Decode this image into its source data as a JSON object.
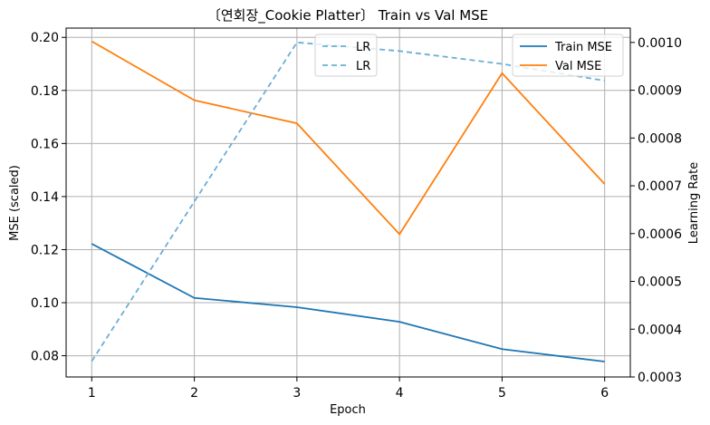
{
  "chart_data": {
    "type": "line",
    "title": "〔연회장_Cookie Platter〕 Train vs Val MSE",
    "xlabel": "Epoch",
    "ylabel": "MSE (scaled)",
    "y2label": "Learning Rate",
    "x": [
      1,
      2,
      3,
      4,
      5,
      6
    ],
    "xlim": [
      0.75,
      6.25
    ],
    "ylim": [
      0.072,
      0.2035
    ],
    "y2lim": [
      0.0003,
      0.00103
    ],
    "xticks": [
      "1",
      "2",
      "3",
      "4",
      "5",
      "6"
    ],
    "yticks": [
      "0.08",
      "0.10",
      "0.12",
      "0.14",
      "0.16",
      "0.18",
      "0.20"
    ],
    "y2ticks": [
      "0.0003",
      "0.0004",
      "0.0005",
      "0.0006",
      "0.0007",
      "0.0008",
      "0.0009",
      "0.0010"
    ],
    "grid": true,
    "series": [
      {
        "name": "Train MSE",
        "axis": "left",
        "color": "#1f77b4",
        "style": "solid",
        "values": [
          0.1222,
          0.1018,
          0.0983,
          0.0928,
          0.0825,
          0.0778
        ]
      },
      {
        "name": "Val MSE",
        "axis": "left",
        "color": "#ff7f0e",
        "style": "solid",
        "values": [
          0.1985,
          0.1763,
          0.1676,
          0.1258,
          0.1865,
          0.1447
        ]
      },
      {
        "name": "LR",
        "axis": "right",
        "color": "#6baed6",
        "style": "dashed",
        "values": [
          0.000333,
          0.000667,
          0.001,
          0.000982,
          0.000955,
          0.00092
        ]
      }
    ],
    "legends": [
      {
        "placement": "top-center",
        "entries": [
          "LR",
          "LR"
        ],
        "color": "#6baed6"
      },
      {
        "placement": "top-right",
        "entries": [
          "Train MSE",
          "Val MSE"
        ]
      }
    ]
  }
}
